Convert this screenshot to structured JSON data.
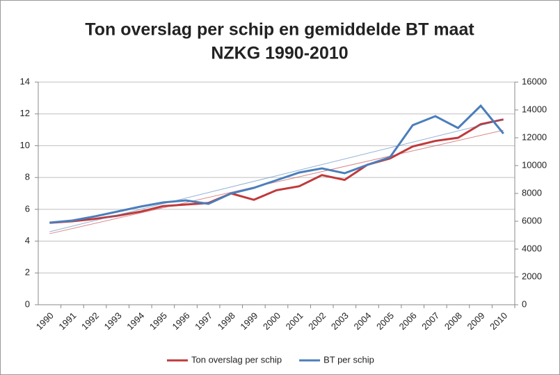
{
  "chart_data": {
    "type": "line",
    "title": [
      "Ton overslag per schip en gemiddelde BT maat",
      "NZKG 1990-2010"
    ],
    "categories": [
      "1990",
      "1991",
      "1992",
      "1993",
      "1994",
      "1995",
      "1996",
      "1997",
      "1998",
      "1999",
      "2000",
      "2001",
      "2002",
      "2003",
      "2004",
      "2005",
      "2006",
      "2007",
      "2008",
      "2009",
      "2010"
    ],
    "series": [
      {
        "name": "Ton overslag per schip",
        "color": "#c0393b",
        "axis": "y",
        "values": [
          5.15,
          5.25,
          5.4,
          5.6,
          5.85,
          6.2,
          6.3,
          6.4,
          7.0,
          6.6,
          7.2,
          7.45,
          8.15,
          7.85,
          8.8,
          9.2,
          9.95,
          10.3,
          10.5,
          11.35,
          11.65
        ]
      },
      {
        "name": "BT per schip",
        "color": "#4a7ebb",
        "axis": "y2",
        "values": [
          5900,
          6050,
          6350,
          6700,
          7050,
          7350,
          7500,
          7250,
          8000,
          8400,
          8950,
          9500,
          9800,
          9450,
          10050,
          10600,
          12900,
          13550,
          12700,
          14300,
          12300
        ]
      }
    ],
    "trendline": true,
    "ylim": [
      0,
      14
    ],
    "yticks": [
      0,
      2,
      4,
      6,
      8,
      10,
      12,
      14
    ],
    "y2lim": [
      0,
      16000
    ],
    "y2ticks": [
      0,
      2000,
      4000,
      6000,
      8000,
      10000,
      12000,
      14000,
      16000
    ],
    "grid": true,
    "legend": "bottom"
  }
}
